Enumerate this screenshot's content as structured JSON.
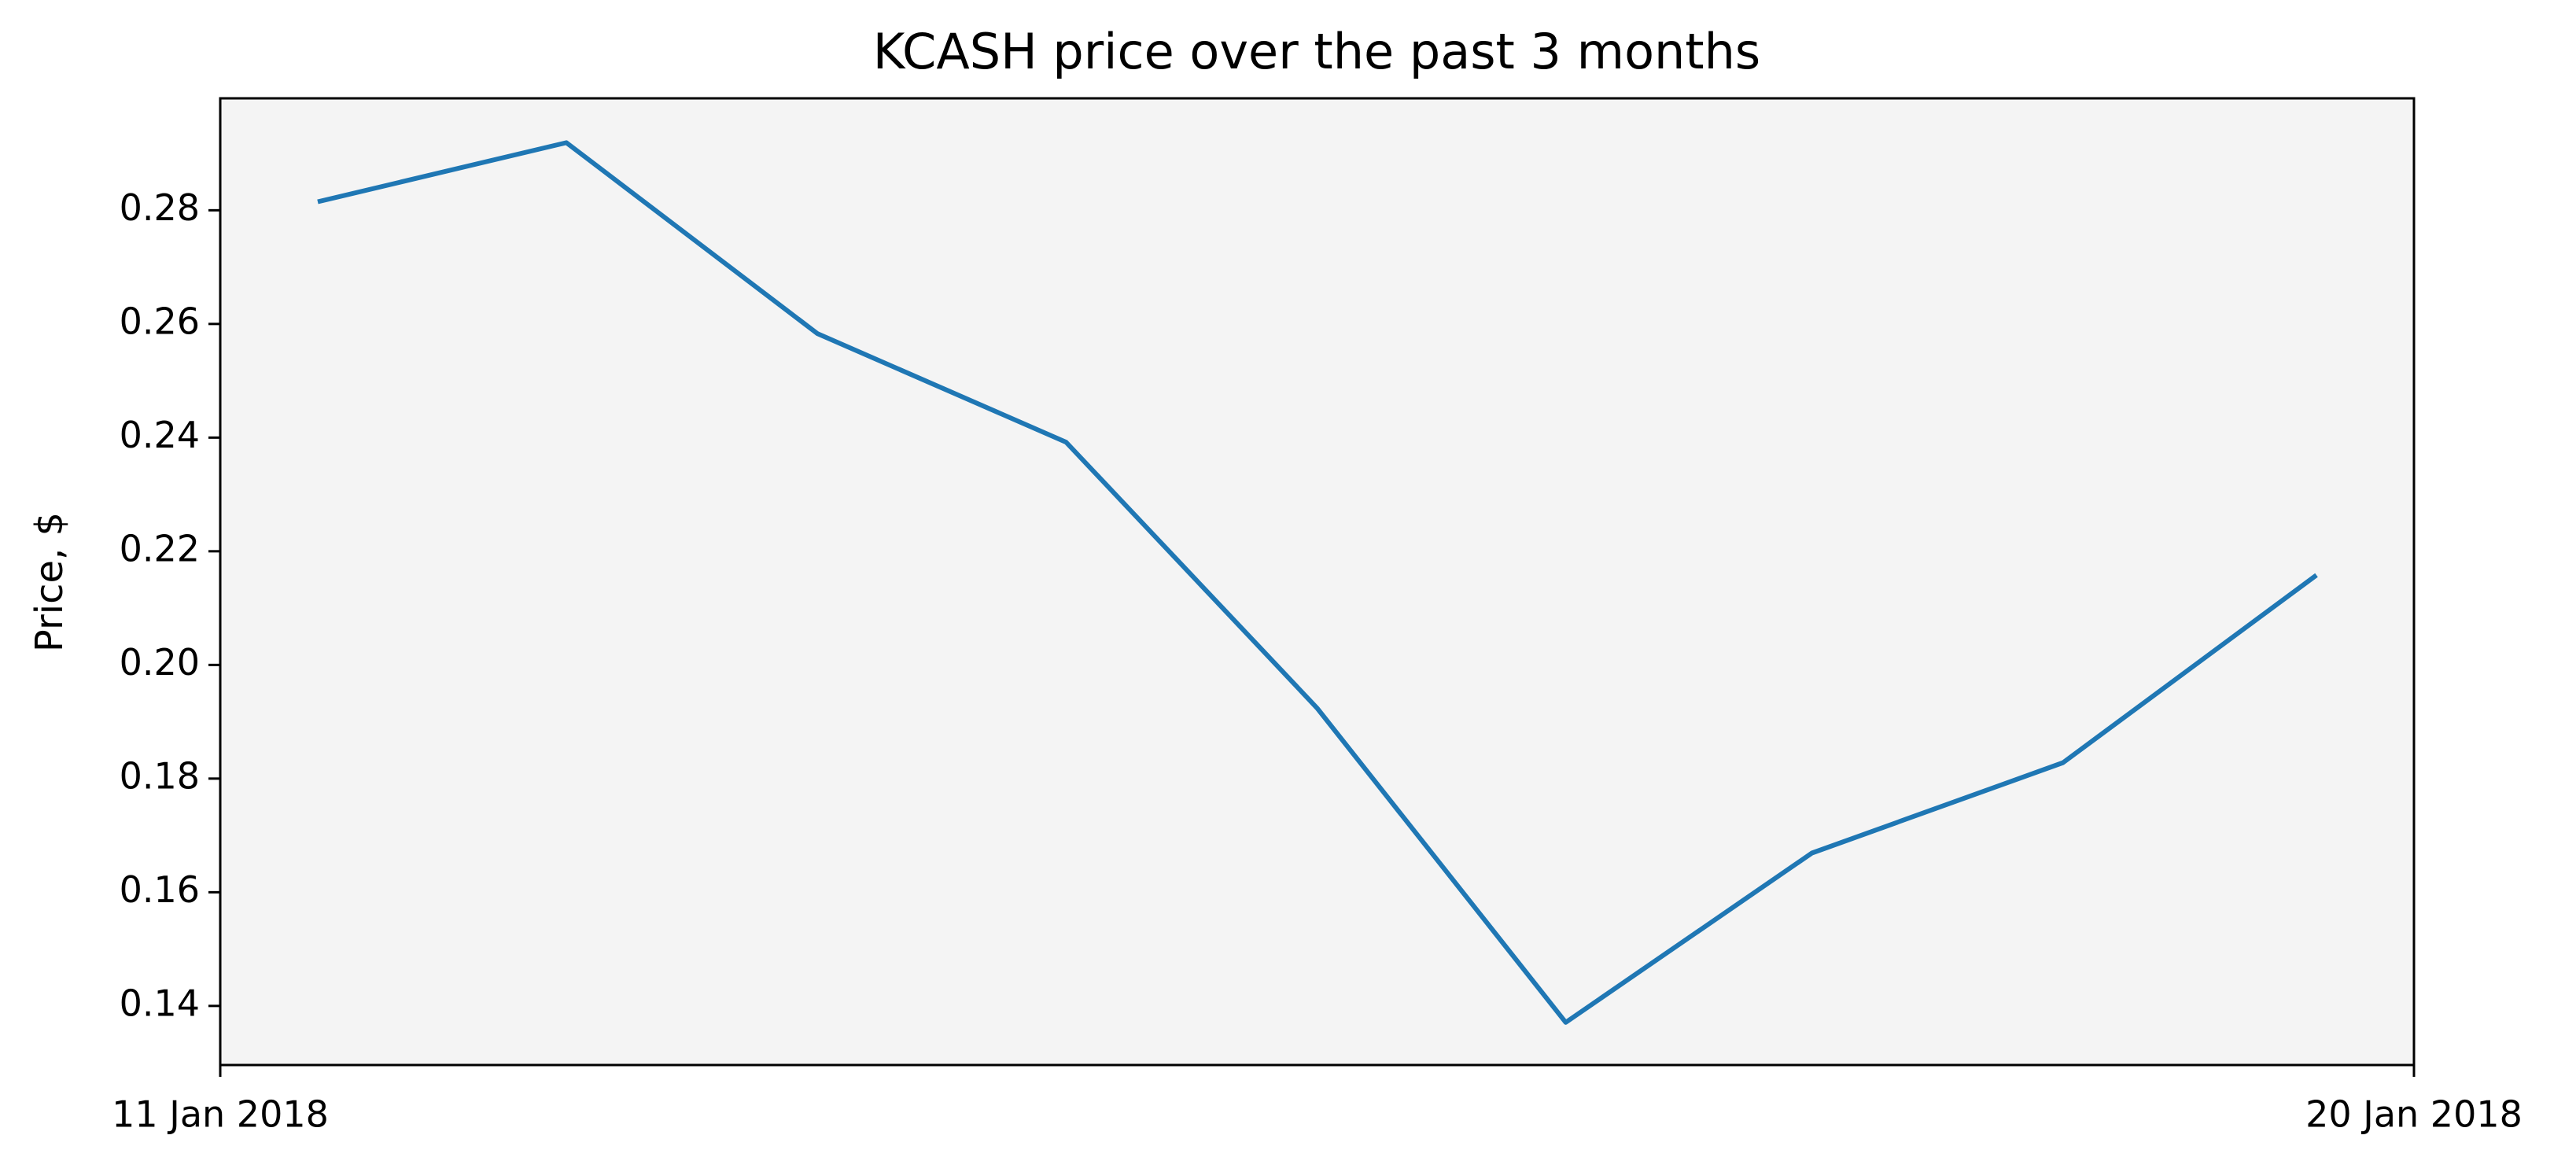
{
  "chart_data": {
    "type": "line",
    "title": "KCASH price over the past 3 months",
    "ylabel": "Price, $",
    "x": [
      0.4,
      1.42,
      2.45,
      3.47,
      4.5,
      5.52,
      6.53,
      7.56,
      8.6
    ],
    "series": [
      {
        "name": "KCASH",
        "color": "#1f77b4",
        "values": [
          0.2815,
          0.2919,
          0.2583,
          0.2392,
          0.1924,
          0.1371,
          0.1669,
          0.1828,
          0.2158
        ]
      }
    ],
    "xlim": [
      0,
      9
    ],
    "xticks": [
      {
        "value": 0,
        "label": "11 Jan 2018"
      },
      {
        "value": 9,
        "label": "20 Jan 2018"
      }
    ],
    "ylim": [
      0.1296,
      0.2997
    ],
    "yticks": [
      {
        "value": 0.14,
        "label": "0.14"
      },
      {
        "value": 0.16,
        "label": "0.16"
      },
      {
        "value": 0.18,
        "label": "0.18"
      },
      {
        "value": 0.2,
        "label": "0.20"
      },
      {
        "value": 0.22,
        "label": "0.22"
      },
      {
        "value": 0.24,
        "label": "0.24"
      },
      {
        "value": 0.26,
        "label": "0.26"
      },
      {
        "value": 0.28,
        "label": "0.28"
      }
    ],
    "background": "#f4f4f4"
  }
}
